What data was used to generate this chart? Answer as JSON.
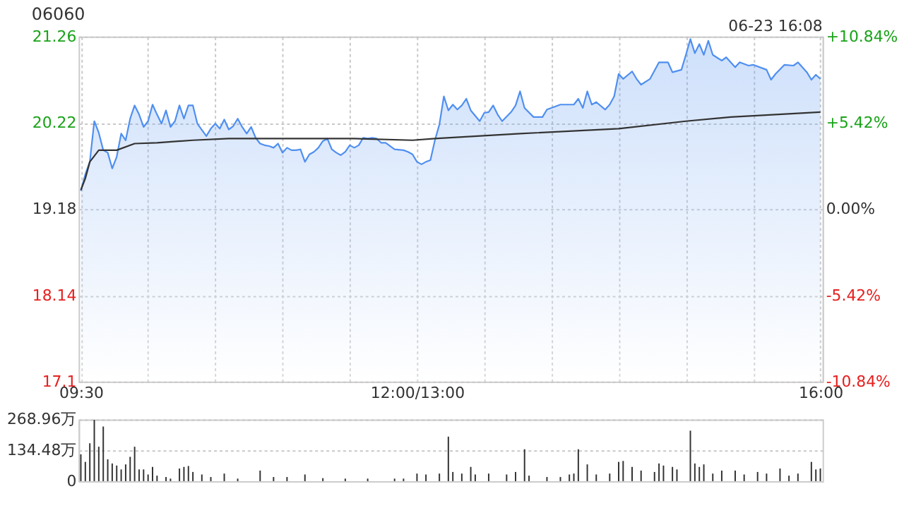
{
  "chart_data": [
    {
      "type": "line",
      "title": "06060",
      "annotations": [
        "06-23 16:08"
      ],
      "categories": [
        "09:30",
        null,
        null,
        null,
        null,
        null,
        null,
        null,
        null,
        null,
        null,
        null,
        null,
        null,
        null,
        null,
        null,
        null,
        null,
        null,
        null,
        null,
        null,
        null,
        null,
        null,
        null,
        null,
        null,
        null,
        null,
        null,
        null,
        null,
        null,
        null,
        null,
        null,
        null,
        null,
        null,
        null,
        null,
        null,
        null,
        null,
        null,
        null,
        null,
        null,
        null,
        null,
        null,
        null,
        null,
        null,
        null,
        null,
        null,
        null,
        null,
        null,
        null,
        null,
        null,
        null,
        null,
        null,
        null,
        null,
        null,
        null,
        null,
        null,
        null,
        "12:00/13:00",
        null,
        null,
        null,
        null,
        null,
        null,
        null,
        null,
        null,
        null,
        null,
        null,
        null,
        null,
        null,
        null,
        null,
        null,
        null,
        null,
        null,
        null,
        null,
        null,
        null,
        null,
        null,
        null,
        null,
        null,
        null,
        null,
        null,
        null,
        null,
        null,
        null,
        null,
        null,
        null,
        null,
        null,
        null,
        null,
        null,
        null,
        null,
        null,
        null,
        null,
        null,
        null,
        null,
        null,
        null,
        null,
        null,
        null,
        null,
        null,
        null,
        null,
        null,
        null,
        null,
        null,
        null,
        null,
        null,
        null,
        null,
        null,
        null,
        null,
        null,
        null,
        null,
        null,
        null,
        null,
        null,
        null,
        null,
        null,
        null,
        null,
        null,
        null,
        null,
        "16:00"
      ],
      "ylim": [
        17.1,
        21.26
      ],
      "yticks": [
        17.1,
        18.14,
        19.18,
        20.22,
        21.26
      ],
      "y2lim": [
        -10.84,
        10.84
      ],
      "y2ticks": [
        {
          "value": -10.84,
          "label": "-10.84%"
        },
        {
          "value": -5.42,
          "label": "-5.42%"
        },
        {
          "value": 0,
          "label": "0.00%"
        },
        {
          "value": 5.42,
          "label": "+5.42%"
        },
        {
          "value": 10.84,
          "label": "+10.84%"
        }
      ],
      "grid": true,
      "series": [
        {
          "type": "area",
          "color": "#4f8ff0",
          "values": [
            19.4,
            19.6,
            19.75,
            20.24,
            20.1,
            19.89,
            19.86,
            19.67,
            19.81,
            20.09,
            20.01,
            20.27,
            20.43,
            20.32,
            20.17,
            20.24,
            20.44,
            20.32,
            20.21,
            20.37,
            20.17,
            20.24,
            20.43,
            20.27,
            20.43,
            20.43,
            20.21,
            null,
            20.06,
            20.15,
            20.21,
            20.15,
            20.26,
            20.14,
            20.18,
            20.27,
            20.17,
            20.09,
            20.17,
            20.04,
            19.97,
            19.95,
            19.94,
            19.92,
            19.97,
            19.86,
            19.92,
            19.89,
            19.89,
            19.9,
            19.75,
            19.84,
            19.87,
            19.92,
            20.0,
            20.03,
            19.9,
            19.86,
            19.83,
            19.87,
            19.95,
            19.92,
            19.95,
            20.04,
            20.03,
            20.04,
            20.03,
            19.98,
            19.98,
            null,
            19.9,
            null,
            19.89,
            19.87,
            19.84,
            19.75,
            19.72,
            19.75,
            19.77,
            20.01,
            20.2,
            20.54,
            20.37,
            20.44,
            20.38,
            20.43,
            20.51,
            20.37,
            null,
            20.24,
            20.34,
            20.35,
            20.43,
            20.32,
            20.24,
            null,
            20.35,
            20.43,
            20.6,
            20.4,
            null,
            20.29,
            null,
            20.29,
            20.38,
            null,
            null,
            20.44,
            null,
            null,
            20.44,
            20.51,
            20.4,
            20.6,
            20.44,
            20.47,
            null,
            20.38,
            20.44,
            20.54,
            20.81,
            20.75,
            null,
            20.84,
            20.75,
            20.68,
            null,
            20.75,
            null,
            20.95,
            null,
            20.95,
            20.83,
            null,
            20.86,
            21.04,
            21.23,
            21.06,
            21.17,
            21.04,
            21.21,
            21.04,
            null,
            20.97,
            21.01,
            null,
            20.89,
            20.95,
            null,
            20.91,
            20.92,
            null,
            null,
            20.86,
            20.74,
            20.81,
            null,
            20.92,
            null,
            20.91,
            20.95,
            null,
            20.83,
            20.74,
            20.8,
            20.75
          ]
        },
        {
          "type": "line",
          "color": "#333333",
          "values": [
            19.41,
            19.55,
            19.75,
            null,
            19.89,
            null,
            null,
            null,
            19.89,
            null,
            null,
            null,
            19.97,
            null,
            null,
            null,
            null,
            19.98,
            null,
            null,
            null,
            null,
            null,
            null,
            null,
            20.01,
            null,
            null,
            null,
            null,
            null,
            null,
            null,
            20.03,
            null,
            null,
            null,
            null,
            null,
            null,
            null,
            null,
            null,
            null,
            null,
            null,
            null,
            null,
            null,
            null,
            null,
            null,
            null,
            null,
            null,
            null,
            null,
            null,
            null,
            null,
            null,
            20.03,
            null,
            null,
            null,
            null,
            null,
            null,
            null,
            null,
            null,
            null,
            null,
            null,
            20.01,
            null,
            null,
            null,
            null,
            20.03,
            null,
            null,
            null,
            null,
            null,
            null,
            null,
            null,
            null,
            null,
            null,
            null,
            null,
            null,
            null,
            null,
            null,
            null,
            20.09,
            null,
            null,
            null,
            null,
            null,
            null,
            null,
            null,
            null,
            null,
            null,
            null,
            null,
            null,
            null,
            null,
            null,
            null,
            null,
            null,
            null,
            20.15,
            null,
            null,
            null,
            null,
            null,
            null,
            null,
            null,
            null,
            null,
            null,
            null,
            null,
            null,
            20.24,
            null,
            null,
            null,
            null,
            null,
            null,
            null,
            null,
            null,
            20.29,
            null,
            null,
            null,
            null,
            null,
            null,
            null,
            null,
            null,
            null,
            null,
            null,
            null,
            null,
            null,
            null,
            null,
            null,
            null,
            20.35
          ]
        }
      ]
    },
    {
      "type": "bar",
      "color": "#333333",
      "tick_labels": "y",
      "grid": "y",
      "categories": [
        null,
        null,
        null,
        null,
        null,
        null,
        null,
        null,
        null,
        null,
        null,
        null,
        null,
        null,
        null,
        null,
        null,
        null,
        null,
        null,
        null,
        null,
        null,
        null,
        null,
        null,
        null,
        null,
        null,
        null,
        null,
        null,
        null,
        null,
        null,
        null,
        null,
        null,
        null,
        null,
        null,
        null,
        null,
        null,
        null,
        null,
        null,
        null,
        null,
        null,
        null,
        null,
        null,
        null,
        null,
        null,
        null,
        null,
        null,
        null,
        null,
        null,
        null,
        null,
        null,
        null,
        null,
        null,
        null,
        null,
        null,
        null,
        null,
        null,
        null,
        null,
        null,
        null,
        null,
        null,
        null,
        null,
        null,
        null,
        null,
        null,
        null,
        null,
        null,
        null,
        null,
        null,
        null,
        null,
        null,
        null,
        null,
        null,
        null,
        null,
        null,
        null,
        null,
        null,
        null,
        null,
        null,
        null,
        null,
        null,
        null,
        null,
        null,
        null,
        null,
        null,
        null,
        null,
        null,
        null,
        null,
        null,
        null,
        null,
        null,
        null,
        null,
        null,
        null,
        null,
        null,
        null,
        null,
        null,
        null,
        null,
        null,
        null,
        null,
        null,
        null,
        null,
        null,
        null,
        null,
        null,
        null,
        null,
        null,
        null,
        null,
        null,
        null,
        null,
        null,
        null,
        null,
        null,
        null,
        null,
        null,
        null,
        null,
        null,
        null,
        null
      ],
      "ylim": [
        0,
        268.96
      ],
      "yticks": [
        0,
        {
          "value": 134.48,
          "label": "134.48万"
        },
        {
          "value": 268.96,
          "label": "268.96万"
        }
      ],
      "values": [
        117,
        84,
        165,
        267,
        150,
        238,
        95,
        77,
        68,
        51,
        73,
        106,
        150,
        51,
        51,
        29,
        62,
        24,
        null,
        18,
        11,
        null,
        55,
        62,
        66,
        40,
        null,
        29,
        null,
        18,
        null,
        null,
        33,
        null,
        null,
        11,
        null,
        null,
        null,
        null,
        46,
        null,
        null,
        18,
        null,
        null,
        18,
        null,
        null,
        null,
        29,
        null,
        null,
        null,
        13,
        null,
        null,
        null,
        null,
        11,
        null,
        null,
        null,
        null,
        11,
        null,
        null,
        null,
        null,
        null,
        11,
        null,
        11,
        null,
        null,
        33,
        null,
        29,
        null,
        null,
        33,
        null,
        194,
        40,
        null,
        33,
        null,
        62,
        29,
        null,
        null,
        33,
        null,
        null,
        null,
        29,
        null,
        40,
        null,
        139,
        24,
        null,
        null,
        null,
        18,
        null,
        null,
        18,
        null,
        29,
        33,
        139,
        null,
        73,
        null,
        29,
        null,
        null,
        33,
        null,
        84,
        88,
        null,
        62,
        null,
        46,
        null,
        null,
        40,
        77,
        68,
        null,
        62,
        51,
        null,
        null,
        220,
        77,
        62,
        73,
        null,
        33,
        null,
        46,
        null,
        null,
        46,
        null,
        29,
        null,
        null,
        40,
        null,
        33,
        null,
        null,
        55,
        null,
        24,
        null,
        33,
        null,
        null,
        84,
        51,
        55
      ]
    }
  ]
}
